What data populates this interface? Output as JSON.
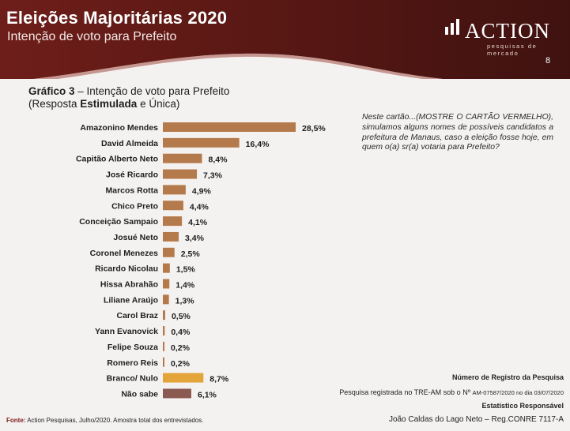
{
  "header": {
    "title": "Eleições Majoritárias 2020",
    "subtitle": "Intenção de voto para Prefeito",
    "logo_text": "ACTION",
    "logo_tagline": "pesquisas de mercado",
    "page_number": "8"
  },
  "chart_heading": {
    "label": "Gráfico 3",
    "title_rest": " – Intenção de voto para Prefeito",
    "line2_open": "(Resposta ",
    "line2_bold": "Estimulada",
    "line2_close": " e Única)"
  },
  "question_text": "Neste cartão...(MOSTRE O CARTÃO VERMELHO), simulamos alguns nomes de possíveis candidatos a prefeitura de Manaus, caso a eleição fosse hoje, em quem o(a) sr(a) votaria para Prefeito?",
  "chart_data": {
    "type": "bar",
    "orientation": "horizontal",
    "title": "Intenção de voto para Prefeito",
    "categories": [
      "Amazonino Mendes",
      "David Almeida",
      "Capitão Alberto Neto",
      "José Ricardo",
      "Marcos Rotta",
      "Chico Preto",
      "Conceição Sampaio",
      "Josué Neto",
      "Coronel Menezes",
      "Ricardo Nicolau",
      "Hissa Abrahão",
      "Liliane Araújo",
      "Carol Braz",
      "Yann Evanovick",
      "Felipe Souza",
      "Romero Reis",
      "Branco/ Nulo",
      "Não sabe"
    ],
    "values": [
      28.5,
      16.4,
      8.4,
      7.3,
      4.9,
      4.4,
      4.1,
      3.4,
      2.5,
      1.5,
      1.4,
      1.3,
      0.5,
      0.4,
      0.2,
      0.2,
      8.7,
      6.1
    ],
    "value_labels": [
      "28,5%",
      "16,4%",
      "8,4%",
      "7,3%",
      "4,9%",
      "4,4%",
      "4,1%",
      "3,4%",
      "2,5%",
      "1,5%",
      "1,4%",
      "1,3%",
      "0,5%",
      "0,4%",
      "0,2%",
      "0,2%",
      "8,7%",
      "6,1%"
    ],
    "bar_colors": [
      "#b57a4c",
      "#b57a4c",
      "#b57a4c",
      "#b57a4c",
      "#b57a4c",
      "#b57a4c",
      "#b57a4c",
      "#b57a4c",
      "#b57a4c",
      "#b57a4c",
      "#b57a4c",
      "#b57a4c",
      "#b57a4c",
      "#b57a4c",
      "#b57a4c",
      "#b57a4c",
      "#e3a43a",
      "#8a5a52"
    ],
    "xlim": [
      0,
      30
    ]
  },
  "registration": {
    "heading": "Número de Registro da Pesquisa",
    "text_main": "Pesquisa registrada no TRE-AM sob o Nº ",
    "text_small": "AM-07587/2020 no dia 03/07/2020",
    "statistician_heading": "Estatístico Responsável",
    "statistician": "João Caldas do Lago Neto – Reg.CONRE 7117-A"
  },
  "source": {
    "label": "Fonte:",
    "text": " Action Pesquisas, Julho/2020. Amostra total dos entrevistados."
  },
  "colors": {
    "header_dark": "#4a1512",
    "header_mid": "#7b2320",
    "bar": "#b57a4c",
    "bar_blank": "#e3a43a",
    "bar_unknown": "#8a5a52"
  }
}
